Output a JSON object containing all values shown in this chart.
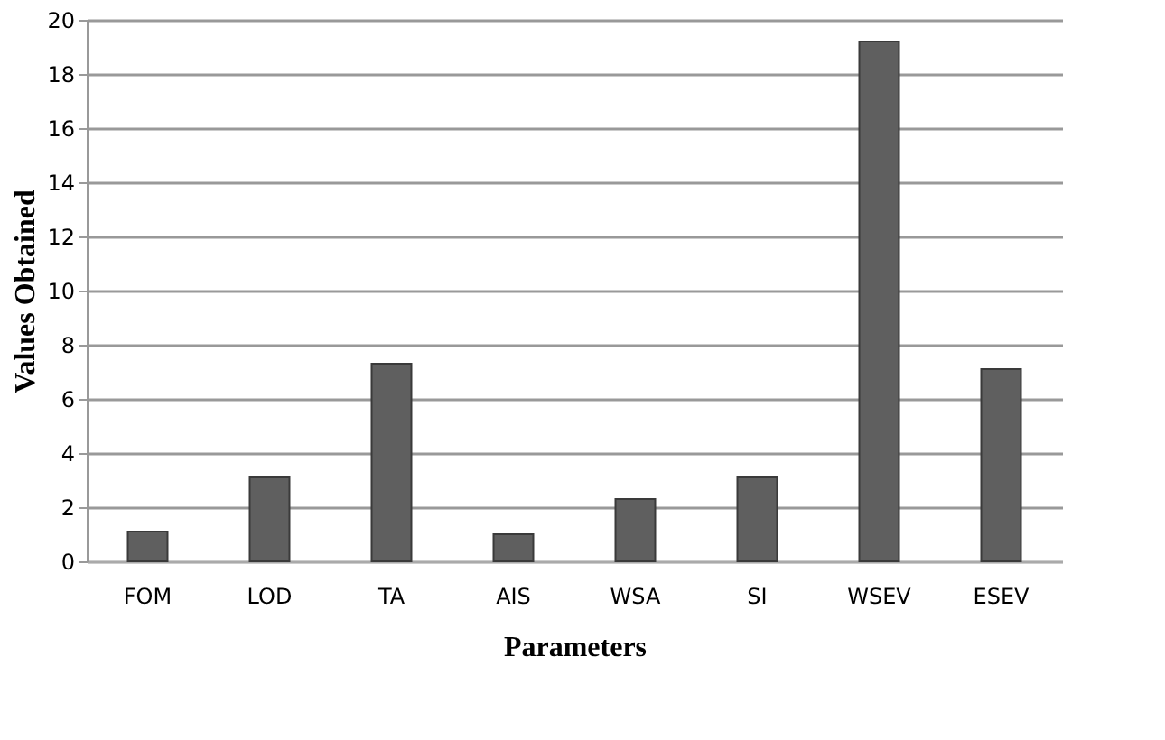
{
  "chart_data": {
    "type": "bar",
    "xlabel": "Parameters",
    "ylabel": "Values Obtained",
    "categories": [
      "FOM",
      "LOD",
      "TA",
      "AIS",
      "WSA",
      "SI",
      "WSEV",
      "ESEV"
    ],
    "values": [
      1.1,
      3.1,
      7.3,
      1.0,
      2.3,
      3.1,
      19.2,
      7.1
    ],
    "color": "#5f5f5f",
    "ylim": [
      0,
      20
    ],
    "yticks": [
      0,
      2,
      4,
      6,
      8,
      10,
      12,
      14,
      16,
      18,
      20
    ],
    "grid": "y"
  }
}
